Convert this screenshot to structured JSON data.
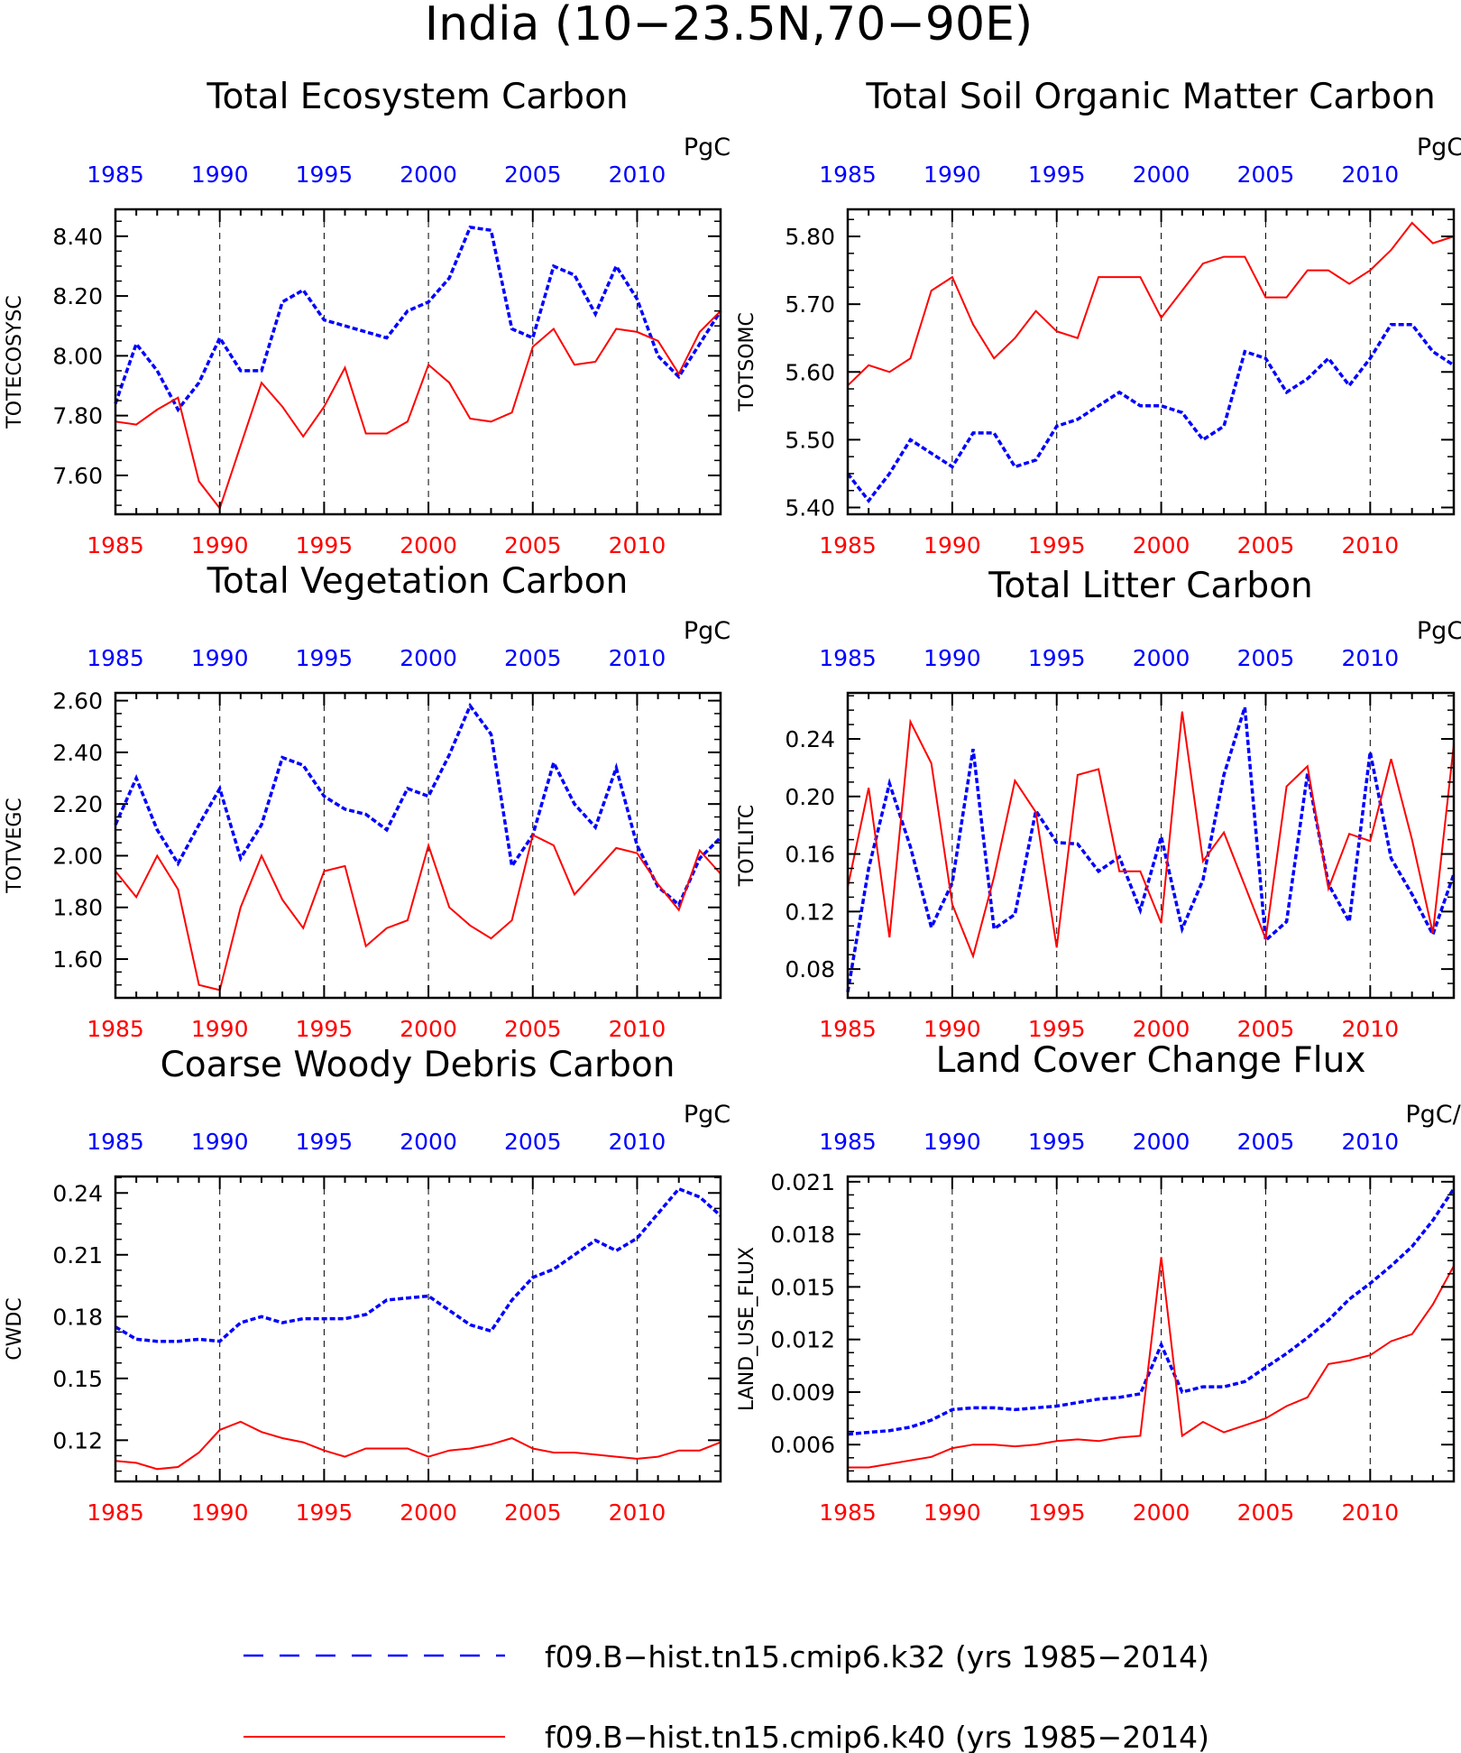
{
  "figure_title": "India (10−23.5N,70−90E)",
  "colors": {
    "k32": "#0000ff",
    "k40": "#ff0000",
    "axis": "#000000"
  },
  "legend": {
    "position": "bottom-center",
    "entries": [
      {
        "label": "f09.B−hist.tn15.cmip6.k32 (yrs 1985−2014)",
        "color": "#0000ff",
        "style": "dashed"
      },
      {
        "label": "f09.B−hist.tn15.cmip6.k40 (yrs 1985−2014)",
        "color": "#ff0000",
        "style": "solid"
      }
    ]
  },
  "chart_data": [
    {
      "type": "line",
      "title": "Total Ecosystem Carbon",
      "ylabel": "TOTECOSYSC",
      "units": "PgC",
      "xlim": [
        1985,
        2014
      ],
      "ylim": [
        7.47,
        8.49
      ],
      "grid_x": true,
      "x_ticks": [
        "1985",
        "1990",
        "1995",
        "2000",
        "2005",
        "2010"
      ],
      "y_ticks": [
        "7.60",
        "7.80",
        "8.00",
        "8.20",
        "8.40"
      ],
      "x": [
        1985,
        1986,
        1987,
        1988,
        1989,
        1990,
        1991,
        1992,
        1993,
        1994,
        1995,
        1996,
        1997,
        1998,
        1999,
        2000,
        2001,
        2002,
        2003,
        2004,
        2005,
        2006,
        2007,
        2008,
        2009,
        2010,
        2011,
        2012,
        2013,
        2014
      ],
      "series": [
        {
          "name": "f09.B−hist.tn15.cmip6.k32 (yrs 1985−2014)",
          "color": "#0000ff",
          "style": "dashed",
          "values": [
            7.84,
            8.04,
            7.95,
            7.82,
            7.91,
            8.06,
            7.95,
            7.95,
            8.18,
            8.22,
            8.12,
            8.1,
            8.08,
            8.06,
            8.15,
            8.18,
            8.26,
            8.43,
            8.42,
            8.09,
            8.06,
            8.3,
            8.27,
            8.14,
            8.3,
            8.19,
            8.0,
            7.93,
            8.04,
            8.15
          ]
        },
        {
          "name": "f09.B−hist.tn15.cmip6.k40 (yrs 1985−2014)",
          "color": "#ff0000",
          "style": "solid",
          "values": [
            7.78,
            7.77,
            7.82,
            7.86,
            7.58,
            7.49,
            7.7,
            7.91,
            7.83,
            7.73,
            7.83,
            7.96,
            7.74,
            7.74,
            7.78,
            7.97,
            7.91,
            7.79,
            7.78,
            7.81,
            8.03,
            8.09,
            7.97,
            7.98,
            8.09,
            8.08,
            8.05,
            7.94,
            8.08,
            8.15
          ]
        }
      ]
    },
    {
      "type": "line",
      "title": "Total Soil Organic Matter Carbon",
      "ylabel": "TOTSOMC",
      "units": "PgC",
      "xlim": [
        1985,
        2014
      ],
      "ylim": [
        5.39,
        5.84
      ],
      "grid_x": true,
      "x_ticks": [
        "1985",
        "1990",
        "1995",
        "2000",
        "2005",
        "2010"
      ],
      "y_ticks": [
        "5.40",
        "5.50",
        "5.60",
        "5.70",
        "5.80"
      ],
      "x": [
        1985,
        1986,
        1987,
        1988,
        1989,
        1990,
        1991,
        1992,
        1993,
        1994,
        1995,
        1996,
        1997,
        1998,
        1999,
        2000,
        2001,
        2002,
        2003,
        2004,
        2005,
        2006,
        2007,
        2008,
        2009,
        2010,
        2011,
        2012,
        2013,
        2014
      ],
      "series": [
        {
          "name": "f09.B−hist.tn15.cmip6.k32 (yrs 1985−2014)",
          "color": "#0000ff",
          "style": "dashed",
          "values": [
            5.45,
            5.41,
            5.45,
            5.5,
            5.48,
            5.46,
            5.51,
            5.51,
            5.46,
            5.47,
            5.52,
            5.53,
            5.55,
            5.57,
            5.55,
            5.55,
            5.54,
            5.5,
            5.52,
            5.63,
            5.62,
            5.57,
            5.59,
            5.62,
            5.58,
            5.62,
            5.67,
            5.67,
            5.63,
            5.61
          ]
        },
        {
          "name": "f09.B−hist.tn15.cmip6.k40 (yrs 1985−2014)",
          "color": "#ff0000",
          "style": "solid",
          "values": [
            5.58,
            5.61,
            5.6,
            5.62,
            5.72,
            5.74,
            5.67,
            5.62,
            5.65,
            5.69,
            5.66,
            5.65,
            5.74,
            5.74,
            5.74,
            5.68,
            5.72,
            5.76,
            5.77,
            5.77,
            5.71,
            5.71,
            5.75,
            5.75,
            5.73,
            5.75,
            5.78,
            5.82,
            5.79,
            5.8
          ]
        }
      ]
    },
    {
      "type": "line",
      "title": "Total Vegetation Carbon",
      "ylabel": "TOTVEGC",
      "units": "PgC",
      "xlim": [
        1985,
        2014
      ],
      "ylim": [
        1.45,
        2.63
      ],
      "grid_x": true,
      "x_ticks": [
        "1985",
        "1990",
        "1995",
        "2000",
        "2005",
        "2010"
      ],
      "y_ticks": [
        "1.60",
        "1.80",
        "2.00",
        "2.20",
        "2.40",
        "2.60"
      ],
      "x": [
        1985,
        1986,
        1987,
        1988,
        1989,
        1990,
        1991,
        1992,
        1993,
        1994,
        1995,
        1996,
        1997,
        1998,
        1999,
        2000,
        2001,
        2002,
        2003,
        2004,
        2005,
        2006,
        2007,
        2008,
        2009,
        2010,
        2011,
        2012,
        2013,
        2014
      ],
      "series": [
        {
          "name": "f09.B−hist.tn15.cmip6.k32 (yrs 1985−2014)",
          "color": "#0000ff",
          "style": "dashed",
          "values": [
            2.12,
            2.3,
            2.1,
            1.97,
            2.12,
            2.26,
            1.99,
            2.12,
            2.38,
            2.35,
            2.23,
            2.18,
            2.16,
            2.1,
            2.26,
            2.23,
            2.39,
            2.58,
            2.47,
            1.96,
            2.08,
            2.36,
            2.2,
            2.11,
            2.34,
            2.04,
            1.88,
            1.81,
            1.99,
            2.07
          ]
        },
        {
          "name": "f09.B−hist.tn15.cmip6.k40 (yrs 1985−2014)",
          "color": "#ff0000",
          "style": "solid",
          "values": [
            1.94,
            1.84,
            2.0,
            1.87,
            1.5,
            1.48,
            1.8,
            2.0,
            1.83,
            1.72,
            1.94,
            1.96,
            1.65,
            1.72,
            1.75,
            2.04,
            1.8,
            1.73,
            1.68,
            1.75,
            2.08,
            2.04,
            1.85,
            1.94,
            2.03,
            2.01,
            1.89,
            1.79,
            2.02,
            1.93
          ]
        }
      ]
    },
    {
      "type": "line",
      "title": "Total Litter Carbon",
      "ylabel": "TOTLITC",
      "units": "PgC",
      "xlim": [
        1985,
        2014
      ],
      "ylim": [
        0.06,
        0.272
      ],
      "grid_x": true,
      "x_ticks": [
        "1985",
        "1990",
        "1995",
        "2000",
        "2005",
        "2010"
      ],
      "y_ticks": [
        "0.08",
        "0.12",
        "0.16",
        "0.20",
        "0.24"
      ],
      "x": [
        1985,
        1986,
        1987,
        1988,
        1989,
        1990,
        1991,
        1992,
        1993,
        1994,
        1995,
        1996,
        1997,
        1998,
        1999,
        2000,
        2001,
        2002,
        2003,
        2004,
        2005,
        2006,
        2007,
        2008,
        2009,
        2010,
        2011,
        2012,
        2013,
        2014
      ],
      "series": [
        {
          "name": "f09.B−hist.tn15.cmip6.k32 (yrs 1985−2014)",
          "color": "#0000ff",
          "style": "dashed",
          "values": [
            0.064,
            0.15,
            0.209,
            0.165,
            0.109,
            0.14,
            0.233,
            0.108,
            0.118,
            0.19,
            0.168,
            0.167,
            0.148,
            0.158,
            0.121,
            0.172,
            0.108,
            0.142,
            0.215,
            0.262,
            0.1,
            0.113,
            0.216,
            0.139,
            0.113,
            0.231,
            0.157,
            0.132,
            0.104,
            0.146
          ]
        },
        {
          "name": "f09.B−hist.tn15.cmip6.k40 (yrs 1985−2014)",
          "color": "#ff0000",
          "style": "solid",
          "values": [
            0.137,
            0.206,
            0.102,
            0.252,
            0.223,
            0.125,
            0.089,
            0.144,
            0.211,
            0.189,
            0.095,
            0.215,
            0.219,
            0.148,
            0.148,
            0.112,
            0.259,
            0.155,
            0.175,
            0.138,
            0.101,
            0.207,
            0.221,
            0.136,
            0.174,
            0.169,
            0.226,
            0.17,
            0.105,
            0.236
          ]
        }
      ]
    },
    {
      "type": "line",
      "title": "Coarse Woody Debris Carbon",
      "ylabel": "CWDC",
      "units": "PgC",
      "xlim": [
        1985,
        2014
      ],
      "ylim": [
        0.1,
        0.248
      ],
      "grid_x": true,
      "x_ticks": [
        "1985",
        "1990",
        "1995",
        "2000",
        "2005",
        "2010"
      ],
      "y_ticks": [
        "0.12",
        "0.15",
        "0.18",
        "0.21",
        "0.24"
      ],
      "x": [
        1985,
        1986,
        1987,
        1988,
        1989,
        1990,
        1991,
        1992,
        1993,
        1994,
        1995,
        1996,
        1997,
        1998,
        1999,
        2000,
        2001,
        2002,
        2003,
        2004,
        2005,
        2006,
        2007,
        2008,
        2009,
        2010,
        2011,
        2012,
        2013,
        2014
      ],
      "series": [
        {
          "name": "f09.B−hist.tn15.cmip6.k32 (yrs 1985−2014)",
          "color": "#0000ff",
          "style": "dashed",
          "values": [
            0.175,
            0.169,
            0.168,
            0.168,
            0.169,
            0.168,
            0.177,
            0.18,
            0.177,
            0.179,
            0.179,
            0.179,
            0.181,
            0.188,
            0.189,
            0.19,
            0.183,
            0.176,
            0.173,
            0.188,
            0.199,
            0.203,
            0.21,
            0.217,
            0.212,
            0.218,
            0.23,
            0.242,
            0.238,
            0.229
          ]
        },
        {
          "name": "f09.B−hist.tn15.cmip6.k40 (yrs 1985−2014)",
          "color": "#ff0000",
          "style": "solid",
          "values": [
            0.11,
            0.109,
            0.106,
            0.107,
            0.114,
            0.125,
            0.129,
            0.124,
            0.121,
            0.119,
            0.115,
            0.112,
            0.116,
            0.116,
            0.116,
            0.112,
            0.115,
            0.116,
            0.118,
            0.121,
            0.116,
            0.114,
            0.114,
            0.113,
            0.112,
            0.111,
            0.112,
            0.115,
            0.115,
            0.119
          ]
        }
      ]
    },
    {
      "type": "line",
      "title": "Land Cover Change Flux",
      "ylabel": "LAND_USE_FLUX",
      "units": "PgC/y",
      "xlim": [
        1985,
        2014
      ],
      "ylim": [
        0.0039,
        0.0213
      ],
      "grid_x": true,
      "x_ticks": [
        "1985",
        "1990",
        "1995",
        "2000",
        "2005",
        "2010"
      ],
      "y_ticks": [
        "0.006",
        "0.009",
        "0.012",
        "0.015",
        "0.018",
        "0.021"
      ],
      "x": [
        1985,
        1986,
        1987,
        1988,
        1989,
        1990,
        1991,
        1992,
        1993,
        1994,
        1995,
        1996,
        1997,
        1998,
        1999,
        2000,
        2001,
        2002,
        2003,
        2004,
        2005,
        2006,
        2007,
        2008,
        2009,
        2010,
        2011,
        2012,
        2013,
        2014
      ],
      "series": [
        {
          "name": "f09.B−hist.tn15.cmip6.k32 (yrs 1985−2014)",
          "color": "#0000ff",
          "style": "dashed",
          "values": [
            0.0066,
            0.0067,
            0.0068,
            0.007,
            0.0074,
            0.008,
            0.0081,
            0.0081,
            0.008,
            0.0081,
            0.0082,
            0.0084,
            0.0086,
            0.0087,
            0.0089,
            0.0117,
            0.009,
            0.0093,
            0.0093,
            0.0096,
            0.0104,
            0.0112,
            0.0121,
            0.0131,
            0.0143,
            0.0152,
            0.0162,
            0.0173,
            0.0188,
            0.0206
          ]
        },
        {
          "name": "f09.B−hist.tn15.cmip6.k40 (yrs 1985−2014)",
          "color": "#ff0000",
          "style": "solid",
          "values": [
            0.0047,
            0.0047,
            0.0049,
            0.0051,
            0.0053,
            0.0058,
            0.006,
            0.006,
            0.0059,
            0.006,
            0.0062,
            0.0063,
            0.0062,
            0.0064,
            0.0065,
            0.0167,
            0.0065,
            0.0073,
            0.0067,
            0.0071,
            0.0075,
            0.0082,
            0.0087,
            0.0106,
            0.0108,
            0.0111,
            0.0119,
            0.0123,
            0.014,
            0.0162
          ]
        }
      ]
    }
  ]
}
